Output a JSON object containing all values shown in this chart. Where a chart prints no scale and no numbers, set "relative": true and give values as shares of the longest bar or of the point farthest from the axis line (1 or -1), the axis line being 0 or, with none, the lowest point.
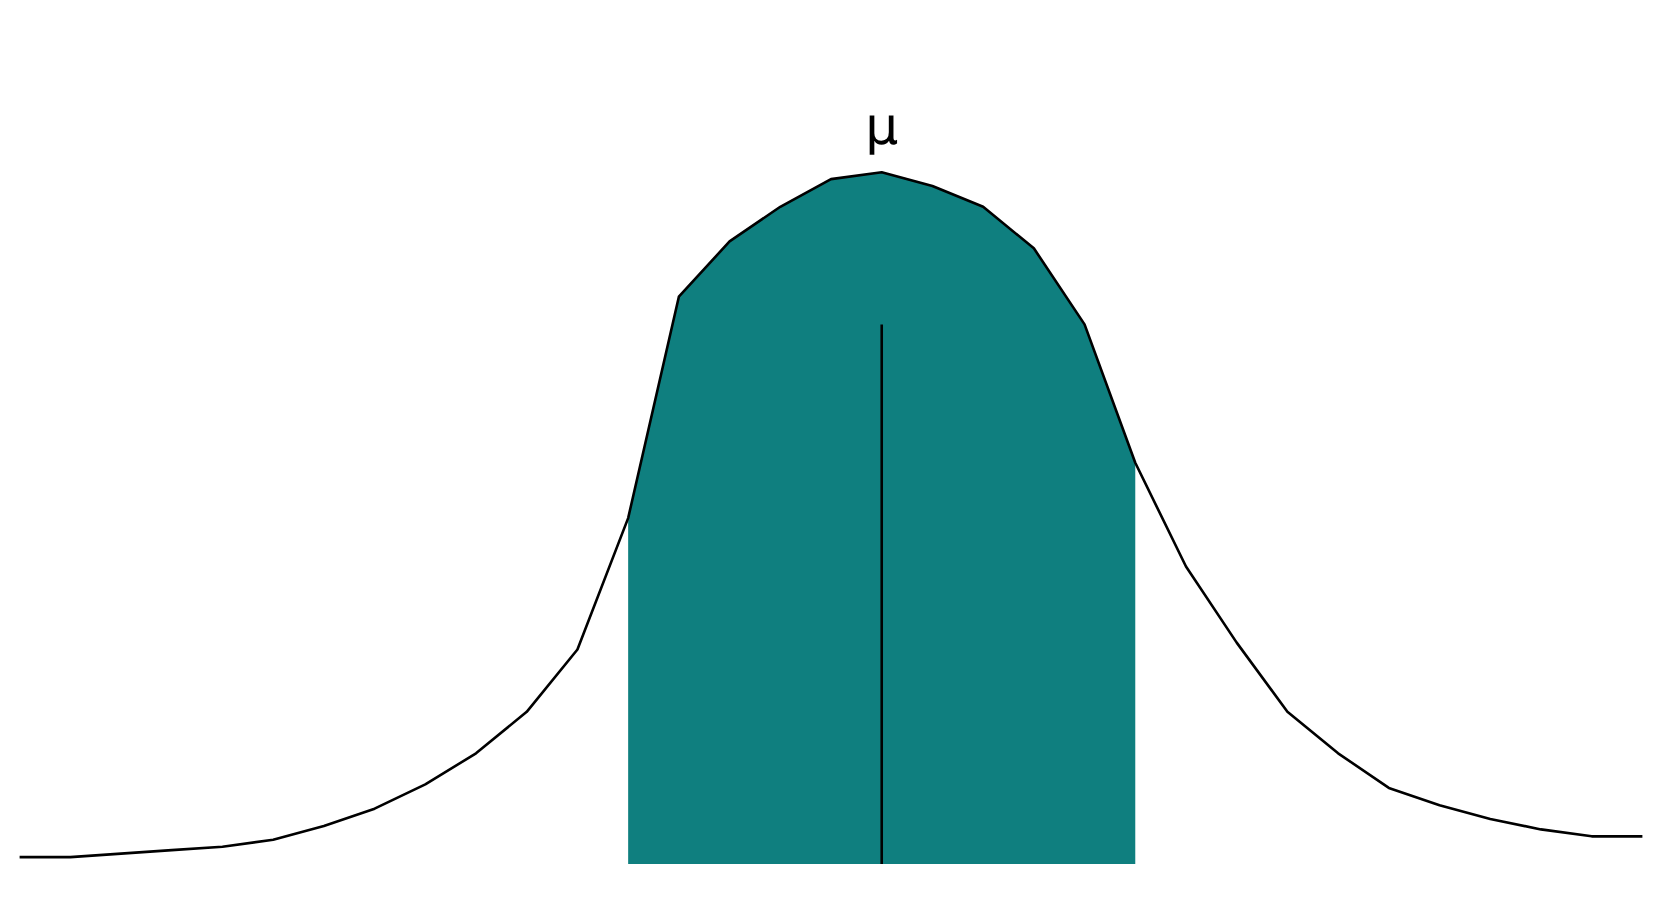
{
  "chart_data": {
    "type": "line",
    "relative": true,
    "annotations": [
      "μ"
    ],
    "categories": [
      null,
      null,
      null,
      null,
      null,
      null,
      null,
      null,
      null,
      null,
      null,
      null,
      null,
      null,
      null,
      null,
      null,
      null,
      null,
      null,
      null,
      null,
      null,
      null,
      null,
      null,
      null,
      null,
      null,
      null,
      null,
      null,
      null
    ],
    "marker": "none",
    "line_style": "solid",
    "series": [
      {
        "type": "area",
        "color": "#0f7f7f",
        "values": [
          null,
          null,
          null,
          null,
          null,
          null,
          null,
          null,
          null,
          null,
          null,
          null,
          0.5,
          0.82,
          0.9,
          0.95,
          0.99,
          1,
          0.98,
          0.95,
          0.89,
          0.78,
          0.58,
          null,
          null,
          null,
          null,
          null,
          null,
          null,
          null,
          null,
          null
        ]
      },
      {
        "color": "#000000",
        "values": [
          0.01,
          0.01,
          0.015,
          0.02,
          0.025,
          0.035,
          0.055,
          0.08,
          0.115,
          0.16,
          0.22,
          0.31,
          0.5,
          0.82,
          0.9,
          0.95,
          0.99,
          1,
          0.98,
          0.95,
          0.89,
          0.78,
          0.58,
          0.43,
          0.32,
          0.22,
          0.16,
          0.11,
          0.085,
          0.065,
          0.05,
          0.04,
          0.04
        ]
      }
    ]
  }
}
